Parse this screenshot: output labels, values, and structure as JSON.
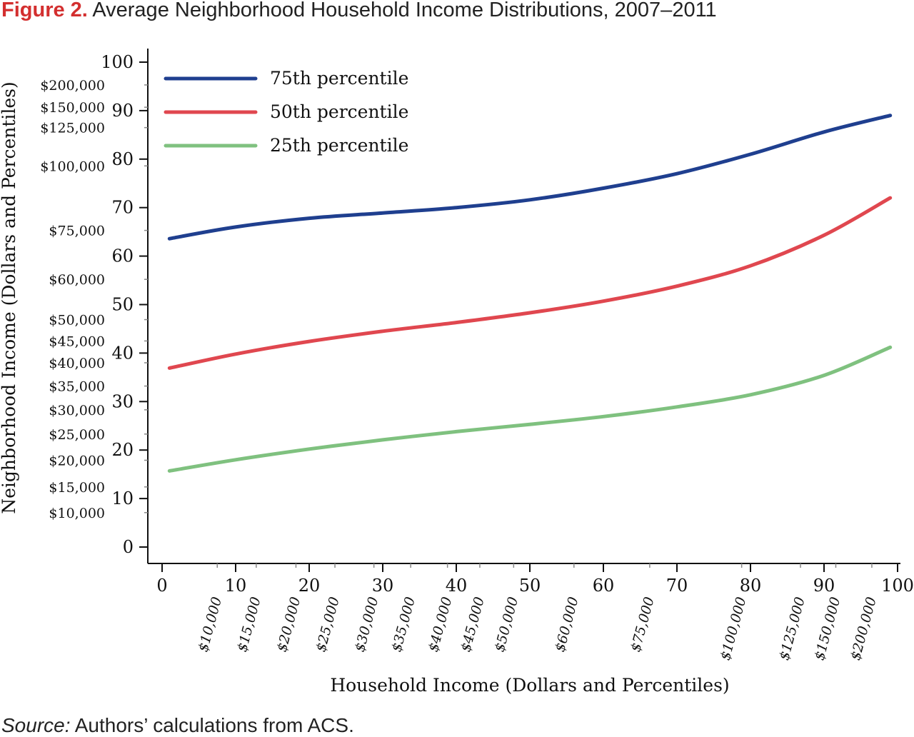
{
  "figure": {
    "label": "Figure 2.",
    "title": "Average Neighborhood Household Income Distributions, 2007–2011"
  },
  "source": {
    "label": "Source:",
    "text": "Authors’ calculations from ACS."
  },
  "colors": {
    "p75": "#1f3f8f",
    "p50": "#e0474f",
    "p25": "#7fc17f",
    "axis": "#111111"
  },
  "chart_data": {
    "type": "line",
    "title": "Average Neighborhood Household Income Distributions, 2007–2011",
    "xlabel": "Household Income (Dollars and Percentiles)",
    "ylabel": "Neighborhood Income (Dollars and Percentiles)",
    "xlim": [
      0,
      100
    ],
    "ylim": [
      0,
      100
    ],
    "x_ticks": [
      0,
      10,
      20,
      30,
      40,
      50,
      60,
      70,
      80,
      90,
      100
    ],
    "y_ticks": [
      0,
      10,
      20,
      30,
      40,
      50,
      60,
      70,
      80,
      90,
      100
    ],
    "x_dollar_labels": [
      {
        "label": "$10,000",
        "x": 7.5
      },
      {
        "label": "$15,000",
        "x": 12.8
      },
      {
        "label": "$20,000",
        "x": 18.2
      },
      {
        "label": "$25,000",
        "x": 23.5
      },
      {
        "label": "$30,000",
        "x": 28.8
      },
      {
        "label": "$35,000",
        "x": 33.8
      },
      {
        "label": "$40,000",
        "x": 38.8
      },
      {
        "label": "$45,000",
        "x": 43.2
      },
      {
        "label": "$50,000",
        "x": 47.8
      },
      {
        "label": "$60,000",
        "x": 56.0
      },
      {
        "label": "$75,000",
        "x": 66.3
      },
      {
        "label": "$100,000",
        "x": 78.8
      },
      {
        "label": "$125,000",
        "x": 86.8
      },
      {
        "label": "$150,000",
        "x": 91.6
      },
      {
        "label": "$200,000",
        "x": 96.5
      }
    ],
    "y_dollar_labels": [
      {
        "label": "$10,000",
        "y": 7.1
      },
      {
        "label": "$15,000",
        "y": 12.4
      },
      {
        "label": "$20,000",
        "y": 17.9
      },
      {
        "label": "$25,000",
        "y": 23.3
      },
      {
        "label": "$30,000",
        "y": 28.3
      },
      {
        "label": "$35,000",
        "y": 33.2
      },
      {
        "label": "$40,000",
        "y": 38.0
      },
      {
        "label": "$45,000",
        "y": 42.5
      },
      {
        "label": "$50,000",
        "y": 46.9
      },
      {
        "label": "$60,000",
        "y": 55.2
      },
      {
        "label": "$75,000",
        "y": 65.3
      },
      {
        "label": "$100,000",
        "y": 78.6
      },
      {
        "label": "$125,000",
        "y": 86.5
      },
      {
        "label": "$150,000",
        "y": 90.7
      },
      {
        "label": "$200,000",
        "y": 95.3
      }
    ],
    "series": [
      {
        "name": "75th percentile",
        "color": "#1f3f8f",
        "points": [
          [
            1,
            63.6
          ],
          [
            10,
            66.0
          ],
          [
            20,
            67.8
          ],
          [
            30,
            68.9
          ],
          [
            40,
            70.0
          ],
          [
            50,
            71.6
          ],
          [
            60,
            74.0
          ],
          [
            70,
            77.0
          ],
          [
            80,
            81.0
          ],
          [
            90,
            85.6
          ],
          [
            99,
            89.0
          ]
        ]
      },
      {
        "name": "50th percentile",
        "color": "#e0474f",
        "points": [
          [
            1,
            36.9
          ],
          [
            10,
            39.8
          ],
          [
            20,
            42.4
          ],
          [
            30,
            44.5
          ],
          [
            40,
            46.3
          ],
          [
            50,
            48.3
          ],
          [
            60,
            50.7
          ],
          [
            70,
            53.8
          ],
          [
            80,
            58.0
          ],
          [
            90,
            64.3
          ],
          [
            99,
            72.0
          ]
        ]
      },
      {
        "name": "25th percentile",
        "color": "#7fc17f",
        "points": [
          [
            1,
            15.7
          ],
          [
            10,
            18.0
          ],
          [
            20,
            20.2
          ],
          [
            30,
            22.1
          ],
          [
            40,
            23.8
          ],
          [
            50,
            25.3
          ],
          [
            60,
            26.9
          ],
          [
            70,
            28.9
          ],
          [
            80,
            31.4
          ],
          [
            90,
            35.4
          ],
          [
            99,
            41.2
          ]
        ]
      }
    ],
    "legend": "top-left",
    "grid": false
  }
}
